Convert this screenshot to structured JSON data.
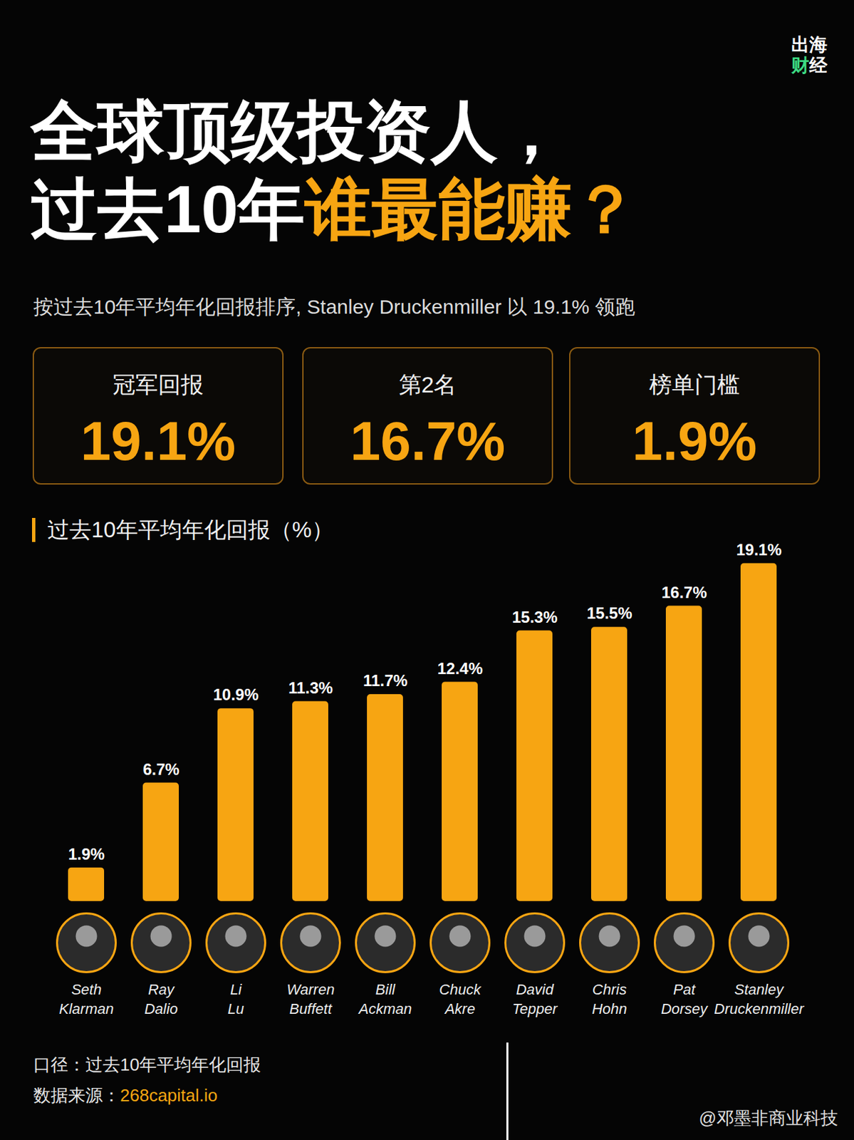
{
  "header": {
    "logo_lines": [
      "出海",
      "财经"
    ],
    "title_line1": "全球顶级投资人，",
    "title_line2": "过去10年",
    "title_highlight": "谁最能赚？",
    "subtitle": "按过去10年平均年化回报排序, Stanley Druckenmiller 以 19.1% 领跑"
  },
  "stats": [
    {
      "label": "冠军回报",
      "value": "19.1%"
    },
    {
      "label": "第2名",
      "value": "16.7%"
    },
    {
      "label": "榜单门槛",
      "value": "1.9%"
    }
  ],
  "chart_data": {
    "type": "bar",
    "title": "过去10年平均年化回报（%）",
    "categories": [
      "Seth Klarman",
      "Ray Dalio",
      "Li Lu",
      "Warren Buffett",
      "Bill Ackman",
      "Chuck Akre",
      "David Tepper",
      "Chris Hohn",
      "Pat Dorsey",
      "Stanley Druckenmiller"
    ],
    "values": [
      1.9,
      6.7,
      10.9,
      11.3,
      11.7,
      12.4,
      15.3,
      15.5,
      16.7,
      19.1
    ],
    "value_labels": [
      "1.9%",
      "6.7%",
      "10.9%",
      "11.3%",
      "11.7%",
      "12.4%",
      "15.3%",
      "15.5%",
      "16.7%",
      "19.1%"
    ],
    "color": "#f7a512",
    "ylim": [
      0,
      20
    ],
    "data_labels": true,
    "tick_labels": "x",
    "grid": false
  },
  "footer": {
    "note": "口径：过去10年平均年化回报",
    "source_label": "数据来源：",
    "source": "268capital.io",
    "watermark": "@邓墨非商业科技"
  }
}
